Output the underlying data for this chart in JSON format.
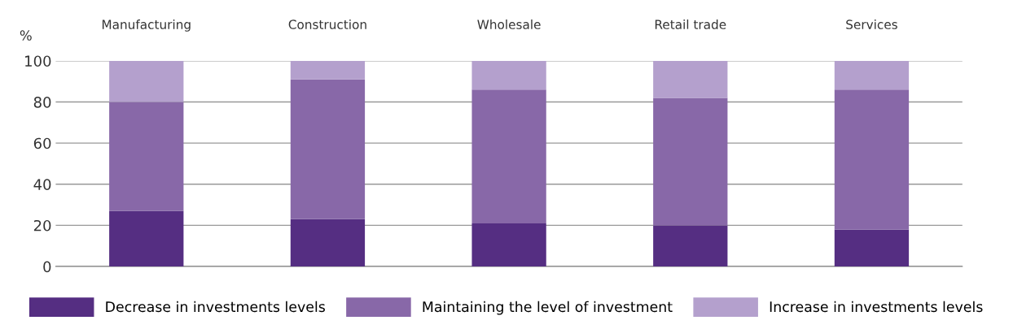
{
  "chart_data": {
    "type": "bar",
    "stacked": true,
    "ylabel": "%",
    "categories": [
      "Manufacturing",
      "Construction",
      "Wholesale",
      "Retail trade",
      "Services"
    ],
    "series": [
      {
        "name": "Decrease in investments levels",
        "color": "#552e82",
        "values": [
          27,
          23,
          21,
          20,
          18
        ]
      },
      {
        "name": "Maintaining the level of investment",
        "color": "#8868a8",
        "values": [
          53,
          68,
          65,
          62,
          68
        ]
      },
      {
        "name": "Increase in investments levels",
        "color": "#b4a0cd",
        "values": [
          20,
          9,
          14,
          18,
          14
        ]
      }
    ],
    "ylim": [
      0,
      100
    ],
    "yticks": [
      0,
      20,
      40,
      60,
      80,
      100
    ],
    "grid": "y",
    "legend": "bottom"
  }
}
